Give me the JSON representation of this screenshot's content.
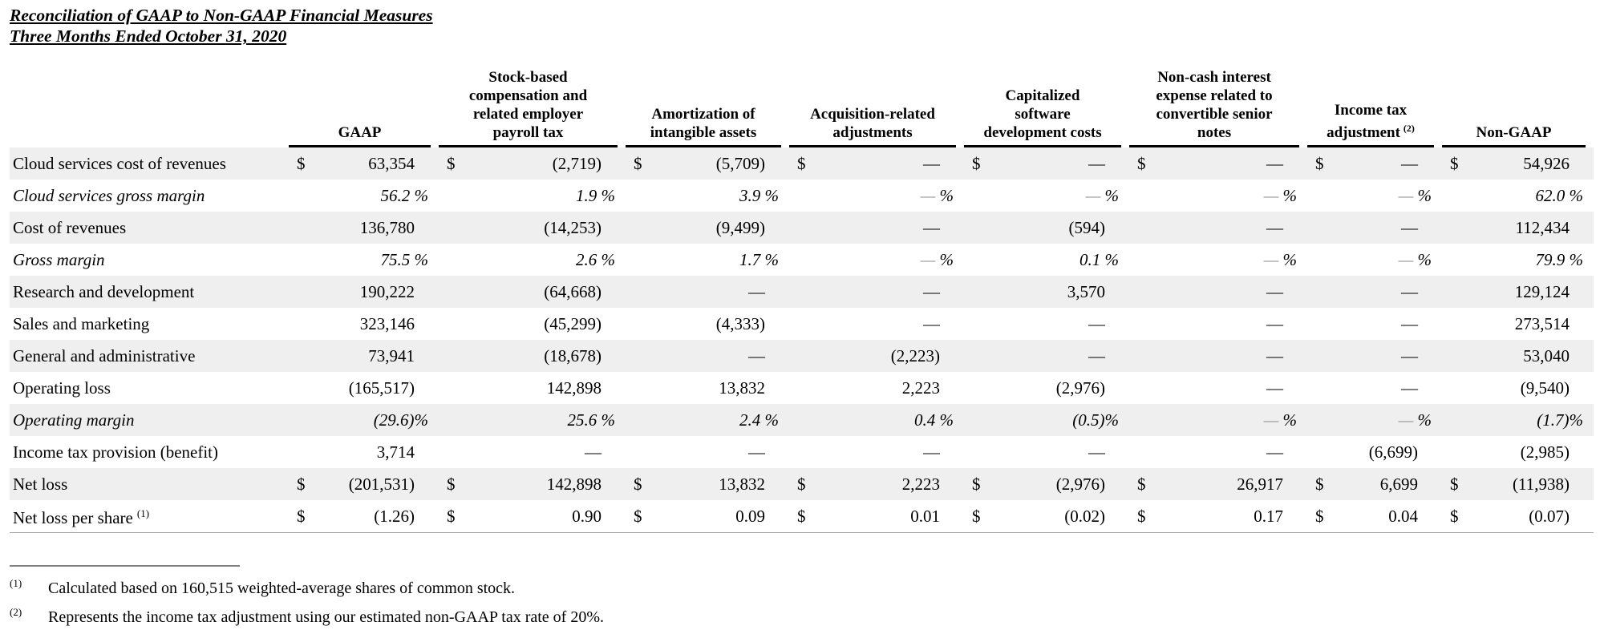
{
  "title": {
    "line1": "Reconciliation of GAAP to Non-GAAP Financial Measures",
    "line2": "Three Months Ended October 31, 2020"
  },
  "table": {
    "columns": [
      {
        "label": "GAAP"
      },
      {
        "label": "Stock-based\ncompensation and\nrelated employer\npayroll tax"
      },
      {
        "label": "Amortization of\nintangible assets"
      },
      {
        "label": "Acquisition-related\nadjustments"
      },
      {
        "label": "Capitalized\nsoftware\ndevelopment costs"
      },
      {
        "label": "Non-cash interest\nexpense related to\nconvertible senior\nnotes"
      },
      {
        "label": "Income tax\nadjustment",
        "sup": "(2)"
      },
      {
        "label": "Non-GAAP"
      }
    ],
    "rows": [
      {
        "label": "Cloud services cost of revenues",
        "shaded": true,
        "cells": [
          {
            "c": "$",
            "v": "63,354"
          },
          {
            "c": "$",
            "v": "(2,719)"
          },
          {
            "c": "$",
            "v": "(5,709)"
          },
          {
            "c": "$",
            "v": "—"
          },
          {
            "c": "$",
            "v": "—"
          },
          {
            "c": "$",
            "v": "—"
          },
          {
            "c": "$",
            "v": "—"
          },
          {
            "c": "$",
            "v": "54,926"
          }
        ]
      },
      {
        "label": "Cloud services gross margin",
        "italic": true,
        "cells": [
          {
            "v": "56.2 %"
          },
          {
            "v": "1.9 %"
          },
          {
            "v": "3.9 %"
          },
          {
            "v": "— %"
          },
          {
            "v": "— %"
          },
          {
            "v": "— %"
          },
          {
            "v": "— %"
          },
          {
            "v": "62.0 %"
          }
        ]
      },
      {
        "label": "Cost of revenues",
        "shaded": true,
        "cells": [
          {
            "v": "136,780"
          },
          {
            "v": "(14,253)"
          },
          {
            "v": "(9,499)"
          },
          {
            "v": "—"
          },
          {
            "v": "(594)"
          },
          {
            "v": "—"
          },
          {
            "v": "—"
          },
          {
            "v": "112,434"
          }
        ]
      },
      {
        "label": "Gross margin",
        "italic": true,
        "cells": [
          {
            "v": "75.5 %"
          },
          {
            "v": "2.6 %"
          },
          {
            "v": "1.7 %"
          },
          {
            "v": "— %"
          },
          {
            "v": "0.1 %"
          },
          {
            "v": "— %"
          },
          {
            "v": "— %"
          },
          {
            "v": "79.9 %"
          }
        ]
      },
      {
        "label": "Research and development",
        "shaded": true,
        "cells": [
          {
            "v": "190,222"
          },
          {
            "v": "(64,668)"
          },
          {
            "v": "—"
          },
          {
            "v": "—"
          },
          {
            "v": "3,570"
          },
          {
            "v": "—"
          },
          {
            "v": "—"
          },
          {
            "v": "129,124"
          }
        ]
      },
      {
        "label": "Sales and marketing",
        "cells": [
          {
            "v": "323,146"
          },
          {
            "v": "(45,299)"
          },
          {
            "v": "(4,333)"
          },
          {
            "v": "—"
          },
          {
            "v": "—"
          },
          {
            "v": "—"
          },
          {
            "v": "—"
          },
          {
            "v": "273,514"
          }
        ]
      },
      {
        "label": "General and administrative",
        "shaded": true,
        "cells": [
          {
            "v": "73,941"
          },
          {
            "v": "(18,678)"
          },
          {
            "v": "—"
          },
          {
            "v": "(2,223)"
          },
          {
            "v": "—"
          },
          {
            "v": "—"
          },
          {
            "v": "—"
          },
          {
            "v": "53,040"
          }
        ]
      },
      {
        "label": "Operating loss",
        "cells": [
          {
            "v": "(165,517)"
          },
          {
            "v": "142,898"
          },
          {
            "v": "13,832"
          },
          {
            "v": "2,223"
          },
          {
            "v": "(2,976)"
          },
          {
            "v": "—"
          },
          {
            "v": "—"
          },
          {
            "v": "(9,540)"
          }
        ]
      },
      {
        "label": "Operating margin",
        "italic": true,
        "shaded": true,
        "cells": [
          {
            "v": "(29.6)%"
          },
          {
            "v": "25.6 %"
          },
          {
            "v": "2.4 %"
          },
          {
            "v": "0.4 %"
          },
          {
            "v": "(0.5)%"
          },
          {
            "v": "— %"
          },
          {
            "v": "— %"
          },
          {
            "v": "(1.7)%"
          }
        ]
      },
      {
        "label": "Income tax provision (benefit)",
        "cells": [
          {
            "v": "3,714"
          },
          {
            "v": "—"
          },
          {
            "v": "—"
          },
          {
            "v": "—"
          },
          {
            "v": "—"
          },
          {
            "v": "—"
          },
          {
            "v": "(6,699)"
          },
          {
            "v": "(2,985)"
          }
        ]
      },
      {
        "label": "Net loss",
        "shaded": true,
        "cells": [
          {
            "c": "$",
            "v": "(201,531)"
          },
          {
            "c": "$",
            "v": "142,898"
          },
          {
            "c": "$",
            "v": "13,832"
          },
          {
            "c": "$",
            "v": "2,223"
          },
          {
            "c": "$",
            "v": "(2,976)"
          },
          {
            "c": "$",
            "v": "26,917"
          },
          {
            "c": "$",
            "v": "6,699"
          },
          {
            "c": "$",
            "v": "(11,938)"
          }
        ]
      },
      {
        "label": "Net loss per share",
        "sup": "(1)",
        "cells": [
          {
            "c": "$",
            "v": "(1.26)"
          },
          {
            "c": "$",
            "v": "0.90"
          },
          {
            "c": "$",
            "v": "0.09"
          },
          {
            "c": "$",
            "v": "0.01"
          },
          {
            "c": "$",
            "v": "(0.02)"
          },
          {
            "c": "$",
            "v": "0.17"
          },
          {
            "c": "$",
            "v": "0.04"
          },
          {
            "c": "$",
            "v": "(0.07)"
          }
        ]
      }
    ]
  },
  "footnotes": [
    {
      "sup": "(1)",
      "text": "Calculated based on 160,515 weighted-average shares of common stock."
    },
    {
      "sup": "(2)",
      "text": "Represents the income tax adjustment using our estimated non-GAAP tax rate of 20%."
    }
  ],
  "colors": {
    "row_shading": "#efefef",
    "header_rule": "#000000",
    "muted_dash": "#8a8a8a",
    "footnote_rule": "#808080",
    "table_bottom_rule": "#a6a6a6",
    "text": "#000000"
  }
}
